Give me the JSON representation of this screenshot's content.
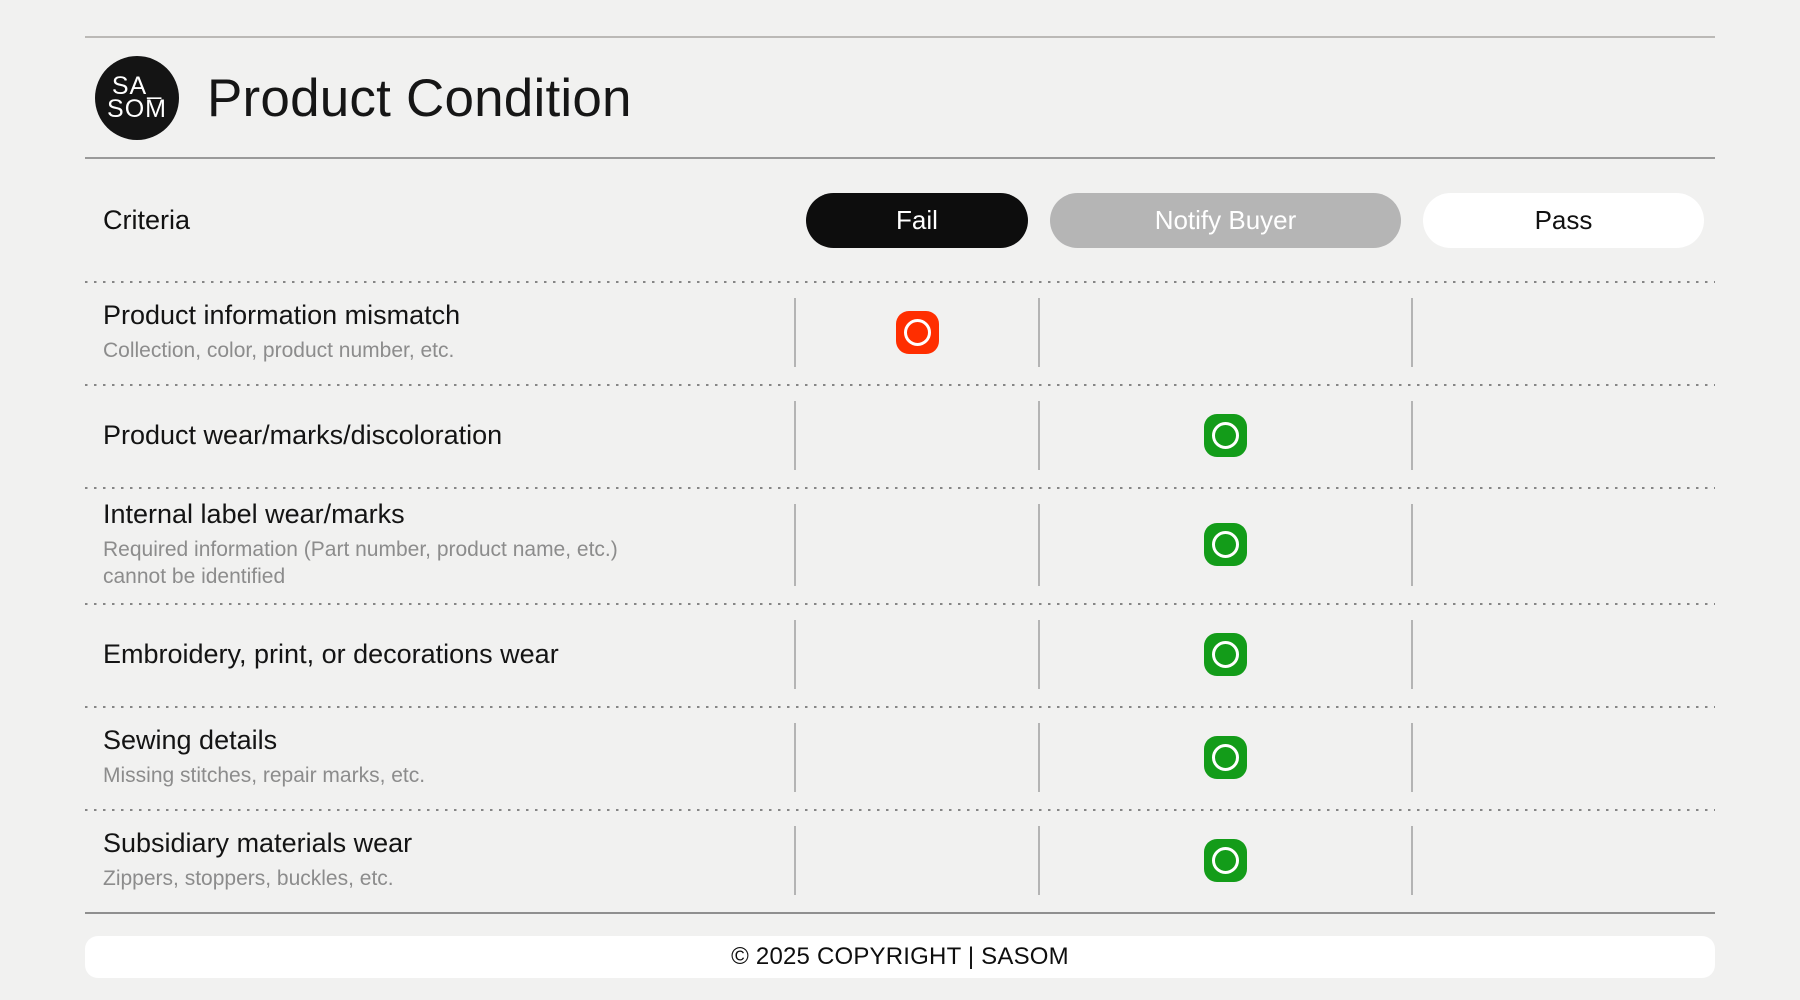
{
  "brand": {
    "logo_line1": "SA_",
    "logo_line2": "SOM"
  },
  "page": {
    "title": "Product Condition"
  },
  "table": {
    "criteria_label": "Criteria",
    "columns": [
      {
        "id": "fail",
        "label": "Fail",
        "bg": "#0D0D0D",
        "fg": "#FFFFFF"
      },
      {
        "id": "notify",
        "label": "Notify Buyer",
        "bg": "#B5B5B5",
        "fg": "#FFFFFF"
      },
      {
        "id": "pass",
        "label": "Pass",
        "bg": "#FFFFFF",
        "fg": "#111111"
      }
    ],
    "rows": [
      {
        "title": "Product information mismatch",
        "subtitle": "Collection, color, product number, etc.",
        "status": "fail"
      },
      {
        "title": "Product wear/marks/discoloration",
        "subtitle": "",
        "status": "notify"
      },
      {
        "title": "Internal label wear/marks",
        "subtitle": "Required information (Part number, product name, etc.) cannot be identified",
        "status": "notify"
      },
      {
        "title": "Embroidery, print, or decorations wear",
        "subtitle": "",
        "status": "notify"
      },
      {
        "title": "Sewing details",
        "subtitle": "Missing stitches, repair marks, etc.",
        "status": "notify"
      },
      {
        "title": "Subsidiary materials wear",
        "subtitle": "Zippers, stoppers, buckles, etc.",
        "status": "notify"
      }
    ]
  },
  "status_marker": {
    "glyph": "circle-outline",
    "fail_color": "#FF2E00",
    "notify_color": "#139C19"
  },
  "footer": {
    "text": "© 2025 COPYRIGHT | SASOM"
  }
}
